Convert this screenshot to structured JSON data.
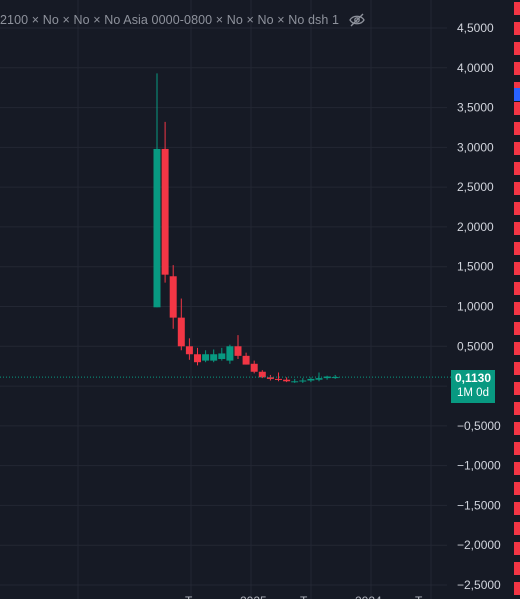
{
  "legend": {
    "text": "2100 × No × No × No Asia 0000-0800 × No × No × No dsh 1",
    "hide_icon": "eye-crossed-icon"
  },
  "price_label": {
    "value": "0,1130",
    "interval": "1M 0d"
  },
  "colors": {
    "background": "#161a25",
    "up": "#089981",
    "down": "#f23645",
    "grid": "#232733"
  },
  "chart_data": {
    "type": "candlestick",
    "y_ticks": [
      "4,5000",
      "4,0000",
      "3,5000",
      "3,0000",
      "2,5000",
      "2,0000",
      "1,5000",
      "1,0000",
      "0,5000",
      "0,0000",
      "−0,5000",
      "−1,0000",
      "−1,5000",
      "−2,0000",
      "−2,5000"
    ],
    "y_tick_values": [
      4.5,
      4,
      3.5,
      3,
      2.5,
      2,
      1.5,
      1,
      0.5,
      0,
      -0.5,
      -1,
      -1.5,
      -2,
      -2.5
    ],
    "ylim": [
      -2.5,
      4.5
    ],
    "x_tick_labels": [
      "T",
      "2025",
      "T",
      "2024",
      "T"
    ],
    "last_price": 0.113,
    "candles": [
      {
        "o": 0.99,
        "h": 3.93,
        "l": 0.99,
        "c": 2.98
      },
      {
        "o": 2.98,
        "h": 3.32,
        "l": 1.3,
        "c": 1.4
      },
      {
        "o": 1.38,
        "h": 1.52,
        "l": 0.72,
        "c": 0.86
      },
      {
        "o": 0.86,
        "h": 1.1,
        "l": 0.45,
        "c": 0.5
      },
      {
        "o": 0.5,
        "h": 0.6,
        "l": 0.33,
        "c": 0.4
      },
      {
        "o": 0.4,
        "h": 0.48,
        "l": 0.26,
        "c": 0.3
      },
      {
        "o": 0.32,
        "h": 0.45,
        "l": 0.3,
        "c": 0.4
      },
      {
        "o": 0.32,
        "h": 0.46,
        "l": 0.3,
        "c": 0.4
      },
      {
        "o": 0.34,
        "h": 0.48,
        "l": 0.32,
        "c": 0.41
      },
      {
        "o": 0.32,
        "h": 0.52,
        "l": 0.28,
        "c": 0.5
      },
      {
        "o": 0.5,
        "h": 0.64,
        "l": 0.34,
        "c": 0.38
      },
      {
        "o": 0.38,
        "h": 0.42,
        "l": 0.27,
        "c": 0.27
      },
      {
        "o": 0.28,
        "h": 0.32,
        "l": 0.16,
        "c": 0.18
      },
      {
        "o": 0.18,
        "h": 0.2,
        "l": 0.1,
        "c": 0.11
      },
      {
        "o": 0.11,
        "h": 0.14,
        "l": 0.07,
        "c": 0.09
      },
      {
        "o": 0.09,
        "h": 0.17,
        "l": 0.06,
        "c": 0.08
      },
      {
        "o": 0.08,
        "h": 0.11,
        "l": 0.05,
        "c": 0.06
      },
      {
        "o": 0.06,
        "h": 0.09,
        "l": 0.04,
        "c": 0.06
      },
      {
        "o": 0.06,
        "h": 0.1,
        "l": 0.04,
        "c": 0.07
      },
      {
        "o": 0.07,
        "h": 0.11,
        "l": 0.05,
        "c": 0.09
      },
      {
        "o": 0.08,
        "h": 0.17,
        "l": 0.06,
        "c": 0.1
      },
      {
        "o": 0.1,
        "h": 0.13,
        "l": 0.08,
        "c": 0.12
      },
      {
        "o": 0.11,
        "h": 0.14,
        "l": 0.09,
        "c": 0.113
      }
    ]
  }
}
